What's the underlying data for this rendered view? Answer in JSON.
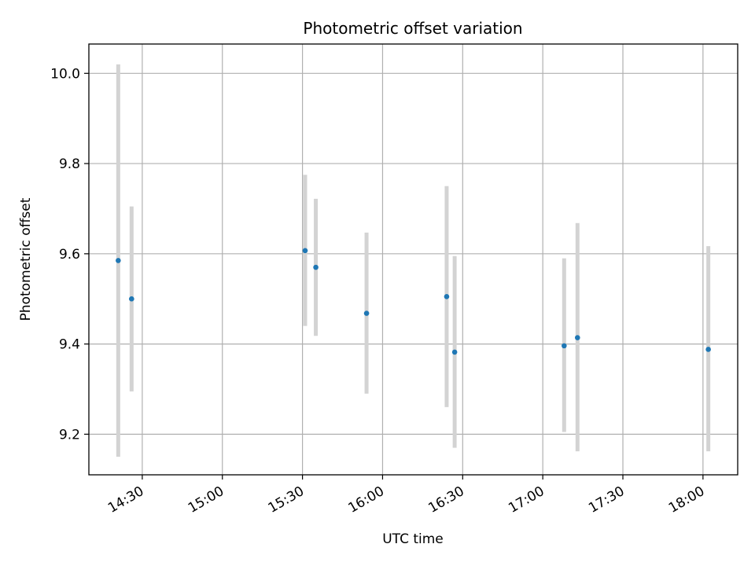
{
  "chart_data": {
    "type": "scatter",
    "title": "Photometric offset variation",
    "xlabel": "UTC time",
    "ylabel": "Photometric offset",
    "x_ticks": [
      "14:30",
      "15:00",
      "15:30",
      "16:00",
      "16:30",
      "17:00",
      "17:30",
      "18:00"
    ],
    "y_ticks": [
      "9.2",
      "9.4",
      "9.6",
      "9.8",
      "10.0"
    ],
    "xlim": [
      "14:10",
      "18:13"
    ],
    "ylim": [
      9.11,
      10.065
    ],
    "grid": true,
    "colors": {
      "point": "#1f77b4",
      "errorbar": "#d3d3d3",
      "grid": "#b0b0b0"
    },
    "points": [
      {
        "x": "14:21",
        "y": 9.585,
        "ylow": 9.15,
        "yhigh": 10.02
      },
      {
        "x": "14:26",
        "y": 9.5,
        "ylow": 9.295,
        "yhigh": 9.705
      },
      {
        "x": "15:31",
        "y": 9.607,
        "ylow": 9.44,
        "yhigh": 9.775
      },
      {
        "x": "15:35",
        "y": 9.57,
        "ylow": 9.418,
        "yhigh": 9.722
      },
      {
        "x": "15:54",
        "y": 9.468,
        "ylow": 9.29,
        "yhigh": 9.647
      },
      {
        "x": "16:24",
        "y": 9.505,
        "ylow": 9.26,
        "yhigh": 9.75
      },
      {
        "x": "16:27",
        "y": 9.382,
        "ylow": 9.17,
        "yhigh": 9.595
      },
      {
        "x": "17:08",
        "y": 9.396,
        "ylow": 9.205,
        "yhigh": 9.59
      },
      {
        "x": "17:13",
        "y": 9.414,
        "ylow": 9.162,
        "yhigh": 9.668
      },
      {
        "x": "18:02",
        "y": 9.388,
        "ylow": 9.162,
        "yhigh": 9.617
      }
    ]
  }
}
